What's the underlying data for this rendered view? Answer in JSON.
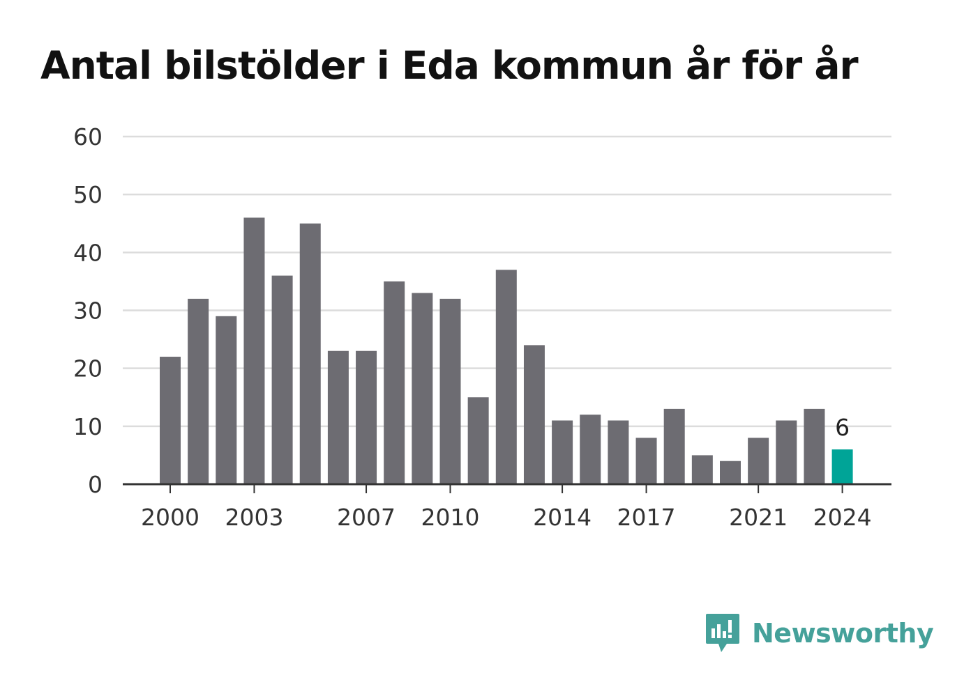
{
  "chart_data": {
    "type": "bar",
    "title": "Antal bilstölder i Eda kommun år för år",
    "xlabel": "",
    "ylabel": "",
    "ylim": [
      0,
      60
    ],
    "yticks": [
      0,
      10,
      20,
      30,
      40,
      50,
      60
    ],
    "xtick_labels": [
      "2000",
      "2003",
      "2007",
      "2010",
      "2014",
      "2017",
      "2021",
      "2024"
    ],
    "grid": true,
    "categories": [
      "2000",
      "2001",
      "2002",
      "2003",
      "2004",
      "2005",
      "2006",
      "2007",
      "2008",
      "2009",
      "2010",
      "2011",
      "2012",
      "2013",
      "2014",
      "2015",
      "2016",
      "2017",
      "2018",
      "2019",
      "2020",
      "2021",
      "2022",
      "2023",
      "2024"
    ],
    "values": [
      22,
      32,
      29,
      46,
      36,
      45,
      23,
      23,
      35,
      33,
      32,
      15,
      37,
      24,
      11,
      12,
      11,
      8,
      13,
      5,
      4,
      8,
      11,
      13,
      6
    ],
    "bar_color": "#6d6c72",
    "highlight_color": "#00a497",
    "highlight_category": "2024",
    "highlight_label": "6"
  },
  "brand": {
    "name": "Newsworthy",
    "color": "#45a19a",
    "icon": "newsworthy-logo-icon"
  }
}
